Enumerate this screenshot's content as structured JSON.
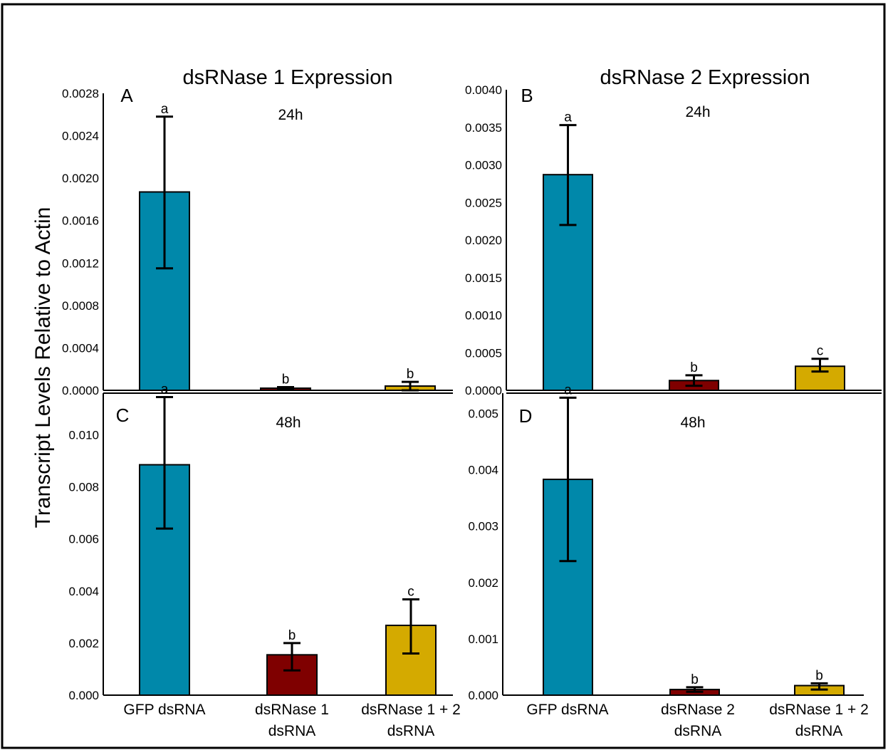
{
  "figure": {
    "ylabel": "Transcript Levels Relative to Actin",
    "column_titles": [
      "dsRNase 1 Expression",
      "dsRNase 2 Expression"
    ],
    "colors": {
      "blue": "#0088aa",
      "red": "#7f0000",
      "gold": "#d4aa00",
      "axis": "#000000"
    }
  },
  "chart_data": [
    {
      "type": "bar",
      "panel": "A",
      "time": "24h",
      "categories": [
        "GFP dsRNA",
        "dsRNase 1 dsRNA",
        "dsRNase 1 + 2 dsRNA"
      ],
      "values": [
        0.00187,
        2e-05,
        4e-05
      ],
      "error": [
        [
          0.00115,
          0.00258
        ],
        [
          1e-05,
          3e-05
        ],
        [
          0.0,
          8e-05
        ]
      ],
      "significance": [
        "a",
        "b",
        "b"
      ],
      "bar_colors": [
        "#0088aa",
        "#7f0000",
        "#d4aa00"
      ],
      "yticks": [
        "0.0000",
        "0.0004",
        "0.0008",
        "0.0012",
        "0.0016",
        "0.0020",
        "0.0024",
        "0.0028"
      ],
      "ylim": [
        0,
        0.0028
      ]
    },
    {
      "type": "bar",
      "panel": "B",
      "time": "24h",
      "categories": [
        "GFP dsRNA",
        "dsRNase 2 dsRNA",
        "dsRNase 1 + 2 dsRNA"
      ],
      "values": [
        0.00287,
        0.00013,
        0.00032
      ],
      "error": [
        [
          0.0022,
          0.00353
        ],
        [
          6e-05,
          0.0002
        ],
        [
          0.00025,
          0.00042
        ]
      ],
      "significance": [
        "a",
        "b",
        "c"
      ],
      "bar_colors": [
        "#0088aa",
        "#7f0000",
        "#d4aa00"
      ],
      "yticks": [
        "0.0000",
        "0.0005",
        "0.0010",
        "0.0015",
        "0.0020",
        "0.0025",
        "0.0030",
        "0.0035",
        "0.0040"
      ],
      "ylim": [
        0,
        0.004
      ]
    },
    {
      "type": "bar",
      "panel": "C",
      "time": "48h",
      "categories": [
        "GFP dsRNA",
        "dsRNase 1 dsRNA",
        "dsRNase 1 + 2 dsRNA"
      ],
      "values": [
        0.00885,
        0.00155,
        0.00268
      ],
      "error": [
        [
          0.0064,
          0.01145
        ],
        [
          0.00095,
          0.002
        ],
        [
          0.0016,
          0.00368
        ]
      ],
      "significance": [
        "a",
        "b",
        "c"
      ],
      "bar_colors": [
        "#0088aa",
        "#7f0000",
        "#d4aa00"
      ],
      "yticks": [
        "0.000",
        "0.002",
        "0.004",
        "0.006",
        "0.008",
        "0.010"
      ],
      "ylim": [
        0,
        0.0116
      ]
    },
    {
      "type": "bar",
      "panel": "D",
      "time": "48h",
      "categories": [
        "GFP dsRNA",
        "dsRNase 2 dsRNA",
        "dsRNase 1 + 2 dsRNA"
      ],
      "values": [
        0.00383,
        0.0001,
        0.00017
      ],
      "error": [
        [
          0.00238,
          0.00528
        ],
        [
          6e-05,
          0.00014
        ],
        [
          0.0001,
          0.00021
        ]
      ],
      "significance": [
        "a",
        "b",
        "b"
      ],
      "bar_colors": [
        "#0088aa",
        "#7f0000",
        "#d4aa00"
      ],
      "yticks": [
        "0.000",
        "0.001",
        "0.002",
        "0.003",
        "0.004",
        "0.005"
      ],
      "ylim": [
        0,
        0.00536
      ]
    }
  ],
  "x_labels": {
    "left": [
      [
        "GFP dsRNA"
      ],
      [
        "dsRNase 1",
        "dsRNA"
      ],
      [
        "dsRNase 1 + 2",
        "dsRNA"
      ]
    ],
    "right": [
      [
        "GFP dsRNA"
      ],
      [
        "dsRNase 2",
        "dsRNA"
      ],
      [
        "dsRNase 1 + 2",
        "dsRNA"
      ]
    ]
  }
}
